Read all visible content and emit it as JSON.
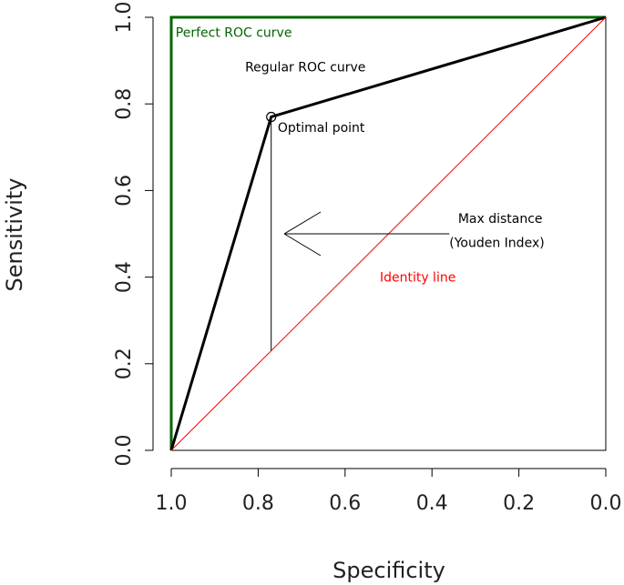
{
  "chart_data": {
    "type": "line",
    "title": "",
    "xlabel": "Specificity",
    "ylabel": "Sensitivity",
    "xlim": [
      1.0,
      0.0
    ],
    "ylim": [
      0.0,
      1.0
    ],
    "x_reversed": true,
    "xticks": [
      "1.0",
      "0.8",
      "0.6",
      "0.4",
      "0.2",
      "0.0"
    ],
    "yticks": [
      "0.0",
      "0.2",
      "0.4",
      "0.6",
      "0.8",
      "1.0"
    ],
    "grid": false,
    "series": [
      {
        "name": "Perfect ROC curve",
        "color": "#006400",
        "x": [
          1.0,
          1.0,
          0.0
        ],
        "y": [
          0.0,
          1.0,
          1.0
        ]
      },
      {
        "name": "Regular ROC curve",
        "color": "#000000",
        "x": [
          1.0,
          0.77,
          0.0
        ],
        "y": [
          0.0,
          0.77,
          1.0
        ]
      },
      {
        "name": "Identity line",
        "color": "#ff0000",
        "x": [
          1.0,
          0.0
        ],
        "y": [
          0.0,
          1.0
        ]
      }
    ],
    "annotations": [
      {
        "text": "Perfect ROC curve",
        "color": "#006400",
        "x": 0.99,
        "y": 0.955
      },
      {
        "text": "Regular ROC curve",
        "color": "#000000",
        "x": 0.83,
        "y": 0.875
      },
      {
        "text": "Optimal point",
        "color": "#000000",
        "x": 0.755,
        "y": 0.735
      },
      {
        "text": "Max distance",
        "color": "#000000",
        "x": 0.34,
        "y": 0.525
      },
      {
        "text": "(Youden Index)",
        "color": "#000000",
        "x": 0.36,
        "y": 0.47
      },
      {
        "text": "Identity line",
        "color": "#ff0000",
        "x": 0.52,
        "y": 0.39
      }
    ],
    "optimal_point": {
      "x": 0.77,
      "y": 0.77
    },
    "youden_segment": {
      "x": 0.77,
      "y_from": 0.23,
      "y_to": 0.77
    },
    "youden_arrow": {
      "from_x": 0.36,
      "to_x": 0.74,
      "y": 0.5
    }
  }
}
